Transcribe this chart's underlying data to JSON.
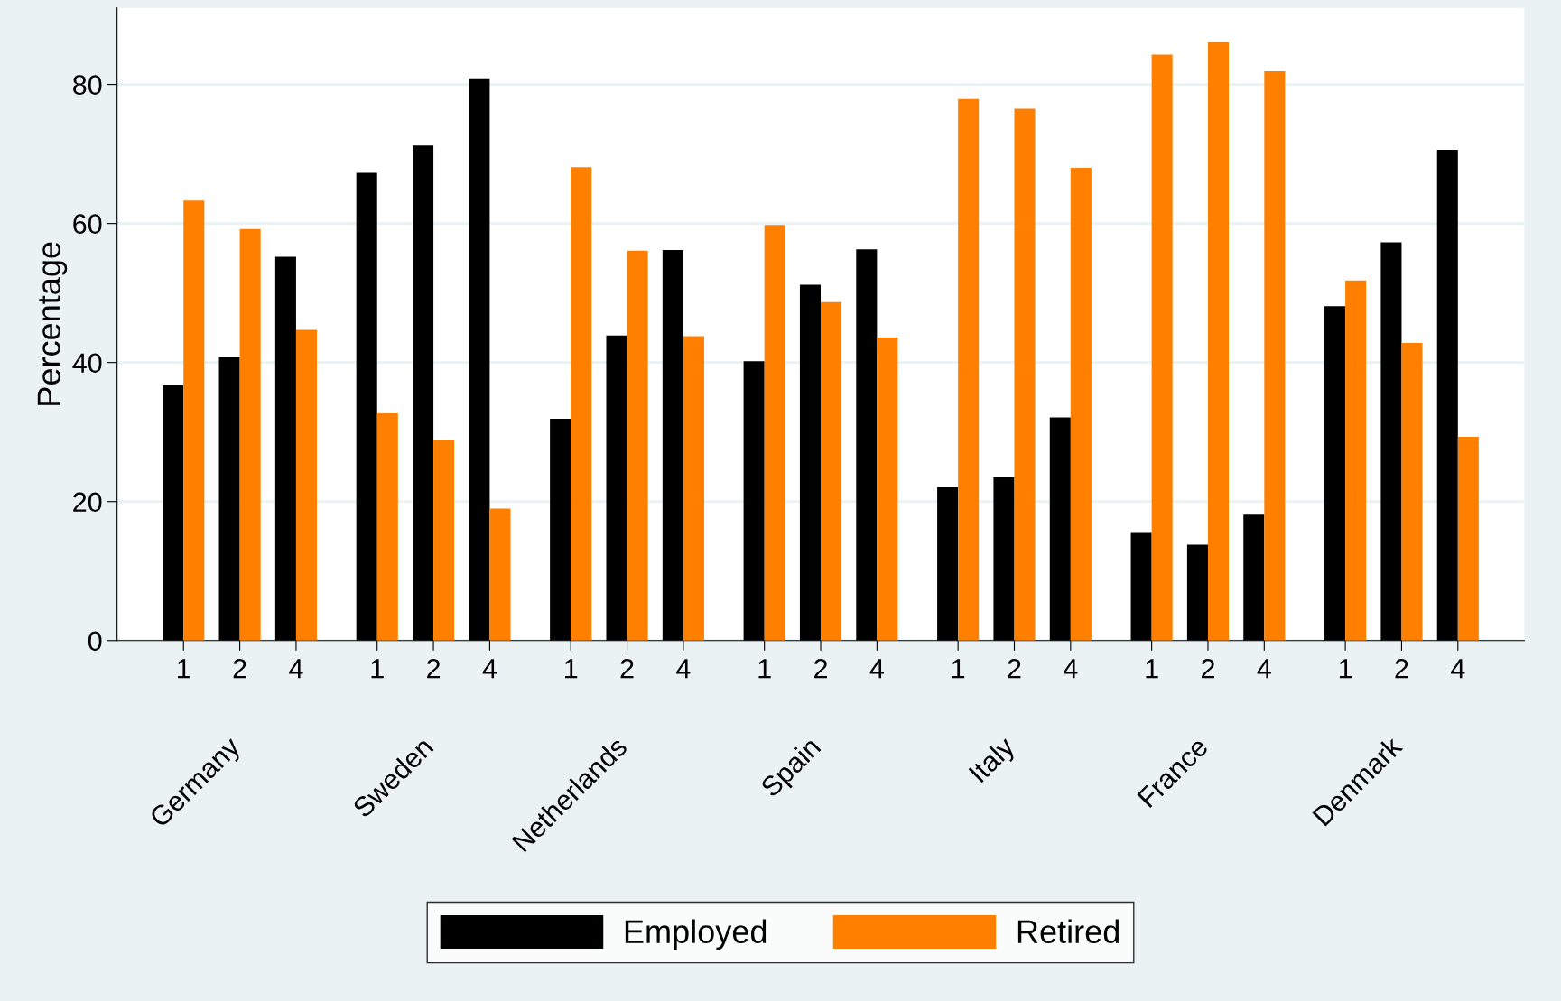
{
  "chart_data": {
    "type": "bar",
    "ylabel": "Percentage",
    "categories": [
      "1",
      "2",
      "4",
      "1",
      "2",
      "4",
      "1",
      "2",
      "4",
      "1",
      "2",
      "4",
      "1",
      "2",
      "4",
      "1",
      "2",
      "4",
      "1",
      "2",
      "4"
    ],
    "series": [
      {
        "name": "Employed",
        "color": "#000000",
        "values": [
          36.7,
          40.8,
          55.2,
          67.3,
          71.2,
          80.9,
          31.9,
          43.9,
          56.2,
          40.2,
          51.2,
          56.3,
          22.1,
          23.5,
          32.1,
          15.6,
          13.8,
          18.1,
          48.1,
          57.3,
          70.6
        ]
      },
      {
        "name": "Retired",
        "color": "#ff8000",
        "values": [
          63.3,
          59.2,
          44.7,
          32.7,
          28.8,
          19.0,
          68.1,
          56.1,
          43.8,
          59.8,
          48.7,
          43.6,
          77.9,
          76.5,
          68.0,
          84.3,
          86.1,
          81.9,
          51.8,
          42.8,
          29.3
        ]
      }
    ],
    "annotations": [
      "Germany",
      "Sweden",
      "Netherlands",
      "Spain",
      "Italy",
      "France",
      "Denmark"
    ],
    "ylim": [
      0,
      91
    ],
    "yticks": [
      0,
      20,
      40,
      60,
      80
    ],
    "grid": "y",
    "legend": "bottom"
  }
}
